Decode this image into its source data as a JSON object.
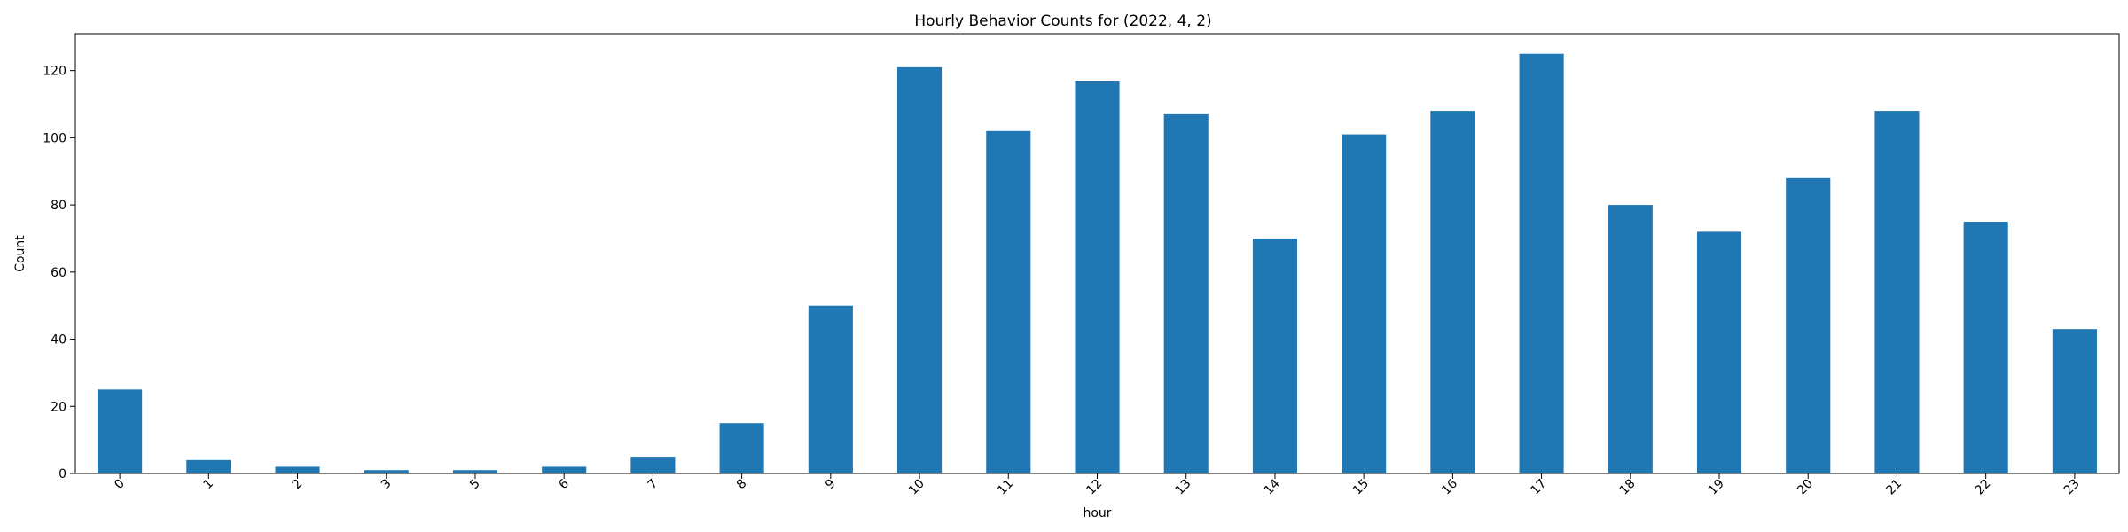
{
  "chart_data": {
    "type": "bar",
    "title": "Hourly Behavior Counts for (2022, 4, 2)",
    "xlabel": "hour",
    "ylabel": "Count",
    "categories": [
      "0",
      "1",
      "2",
      "3",
      "5",
      "6",
      "7",
      "8",
      "9",
      "10",
      "11",
      "12",
      "13",
      "14",
      "15",
      "16",
      "17",
      "18",
      "19",
      "20",
      "21",
      "22",
      "23"
    ],
    "values": [
      25,
      4,
      2,
      1,
      1,
      2,
      5,
      15,
      50,
      121,
      102,
      117,
      107,
      70,
      101,
      108,
      125,
      80,
      72,
      88,
      108,
      75,
      43
    ],
    "ylim": [
      0,
      131
    ],
    "yticks": [
      0,
      20,
      40,
      60,
      80,
      100,
      120
    ],
    "bar_color": "#1f77b4",
    "grid": false,
    "legend": "none"
  }
}
